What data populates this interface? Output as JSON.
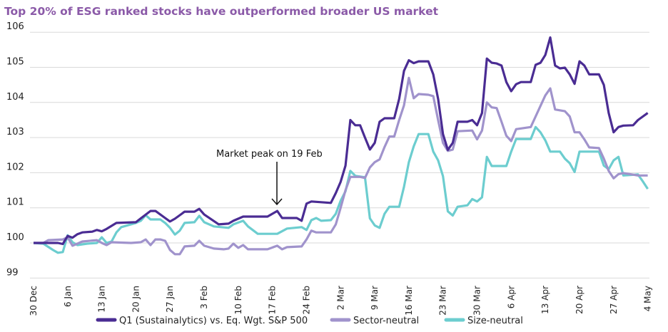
{
  "chart_data": {
    "type": "line",
    "title": "Top 20% of ESG ranked stocks have outperformed broader US market",
    "xlabel": "",
    "ylabel": "",
    "ylim": [
      99,
      106
    ],
    "yticks": [
      "99",
      "100",
      "101",
      "102",
      "103",
      "104",
      "105",
      "106"
    ],
    "xticks": [
      "30 Dec",
      "6 Jan",
      "13 Jan",
      "20 Jan",
      "27 Jan",
      "3 Feb",
      "10 Feb",
      "17 Feb",
      "24 Feb",
      "2 Mar",
      "9 Mar",
      "16 Mar",
      "23 Mar",
      "30 Mar",
      "6 Apr",
      "13 Apr",
      "20 Apr",
      "27 Apr",
      "4 May"
    ],
    "grid": "horizontal",
    "legend": "bottom",
    "annotation": {
      "text": "Market peak on 19 Feb",
      "date": "19 Feb"
    },
    "colors": {
      "title": "#8b5aa8",
      "grid": "#d9d9d9"
    },
    "series": [
      {
        "name": "Q1 (Sustainalytics) vs. Eq. Wgt. S&P 500",
        "color": "#4a2c93",
        "points": [
          [
            "30 Dec",
            100.0
          ],
          [
            "4 Jan",
            100.0
          ],
          [
            "5 Jan",
            99.97
          ],
          [
            "6 Jan",
            100.2
          ],
          [
            "7 Jan",
            100.15
          ],
          [
            "8 Jan",
            100.25
          ],
          [
            "9 Jan",
            100.3
          ],
          [
            "11 Jan",
            100.32
          ],
          [
            "12 Jan",
            100.37
          ],
          [
            "13 Jan",
            100.33
          ],
          [
            "14 Jan",
            100.4
          ],
          [
            "16 Jan",
            100.57
          ],
          [
            "20 Jan",
            100.59
          ],
          [
            "21 Jan",
            100.7
          ],
          [
            "23 Jan",
            100.91
          ],
          [
            "24 Jan",
            100.91
          ],
          [
            "26 Jan",
            100.71
          ],
          [
            "27 Jan",
            100.61
          ],
          [
            "28 Jan",
            100.69
          ],
          [
            "30 Jan",
            100.89
          ],
          [
            "1 Feb",
            100.89
          ],
          [
            "2 Feb",
            100.97
          ],
          [
            "3 Feb",
            100.81
          ],
          [
            "6 Feb",
            100.53
          ],
          [
            "8 Feb",
            100.55
          ],
          [
            "9 Feb",
            100.63
          ],
          [
            "11 Feb",
            100.75
          ],
          [
            "16 Feb",
            100.75
          ],
          [
            "18 Feb",
            100.91
          ],
          [
            "19 Feb",
            100.71
          ],
          [
            "22 Feb",
            100.71
          ],
          [
            "23 Feb",
            100.63
          ],
          [
            "24 Feb",
            101.12
          ],
          [
            "25 Feb",
            101.18
          ],
          [
            "29 Feb",
            101.14
          ],
          [
            "1 Mar",
            101.42
          ],
          [
            "2 Mar",
            101.74
          ],
          [
            "3 Mar",
            102.2
          ],
          [
            "4 Mar",
            103.5
          ],
          [
            "5 Mar",
            103.35
          ],
          [
            "6 Mar",
            103.35
          ],
          [
            "7 Mar",
            103.0
          ],
          [
            "8 Mar",
            102.66
          ],
          [
            "9 Mar",
            102.85
          ],
          [
            "10 Mar",
            103.45
          ],
          [
            "11 Mar",
            103.55
          ],
          [
            "13 Mar",
            103.55
          ],
          [
            "14 Mar",
            104.1
          ],
          [
            "15 Mar",
            104.9
          ],
          [
            "16 Mar",
            105.2
          ],
          [
            "17 Mar",
            105.12
          ],
          [
            "18 Mar",
            105.17
          ],
          [
            "20 Mar",
            105.17
          ],
          [
            "21 Mar",
            104.8
          ],
          [
            "22 Mar",
            104.1
          ],
          [
            "23 Mar",
            103.1
          ],
          [
            "24 Mar",
            102.65
          ],
          [
            "25 Mar",
            102.85
          ],
          [
            "26 Mar",
            103.45
          ],
          [
            "28 Mar",
            103.45
          ],
          [
            "29 Mar",
            103.5
          ],
          [
            "30 Mar",
            103.35
          ],
          [
            "31 Mar",
            103.7
          ],
          [
            "1 Apr",
            105.25
          ],
          [
            "2 Apr",
            105.13
          ],
          [
            "3 Apr",
            105.11
          ],
          [
            "4 Apr",
            105.05
          ],
          [
            "5 Apr",
            104.58
          ],
          [
            "6 Apr",
            104.32
          ],
          [
            "7 Apr",
            104.52
          ],
          [
            "8 Apr",
            104.58
          ],
          [
            "10 Apr",
            104.58
          ],
          [
            "11 Apr",
            105.07
          ],
          [
            "12 Apr",
            105.13
          ],
          [
            "13 Apr",
            105.35
          ],
          [
            "14 Apr",
            105.85
          ],
          [
            "15 Apr",
            105.05
          ],
          [
            "16 Apr",
            104.97
          ],
          [
            "17 Apr",
            104.99
          ],
          [
            "18 Apr",
            104.8
          ],
          [
            "19 Apr",
            104.53
          ],
          [
            "20 Apr",
            105.17
          ],
          [
            "21 Apr",
            105.05
          ],
          [
            "22 Apr",
            104.8
          ],
          [
            "24 Apr",
            104.8
          ],
          [
            "25 Apr",
            104.5
          ],
          [
            "26 Apr",
            103.7
          ],
          [
            "27 Apr",
            103.15
          ],
          [
            "28 Apr",
            103.3
          ],
          [
            "29 Apr",
            103.34
          ],
          [
            "1 May",
            103.35
          ],
          [
            "2 May",
            103.5
          ],
          [
            "4 May",
            103.7
          ]
        ]
      },
      {
        "name": "Sector-neutral",
        "color": "#a093cc",
        "points": [
          [
            "30 Dec",
            100.0
          ],
          [
            "1 Jan",
            100.0
          ],
          [
            "2 Jan",
            100.08
          ],
          [
            "5 Jan",
            100.1
          ],
          [
            "6 Jan",
            100.16
          ],
          [
            "7 Jan",
            99.92
          ],
          [
            "8 Jan",
            99.98
          ],
          [
            "9 Jan",
            100.04
          ],
          [
            "12 Jan",
            100.08
          ],
          [
            "13 Jan",
            100.0
          ],
          [
            "14 Jan",
            99.94
          ],
          [
            "15 Jan",
            100.02
          ],
          [
            "19 Jan",
            100.0
          ],
          [
            "21 Jan",
            100.02
          ],
          [
            "22 Jan",
            100.1
          ],
          [
            "23 Jan",
            99.94
          ],
          [
            "24 Jan",
            100.1
          ],
          [
            "25 Jan",
            100.1
          ],
          [
            "26 Jan",
            100.06
          ],
          [
            "27 Jan",
            99.8
          ],
          [
            "28 Jan",
            99.68
          ],
          [
            "29 Jan",
            99.68
          ],
          [
            "30 Jan",
            99.9
          ],
          [
            "1 Feb",
            99.92
          ],
          [
            "2 Feb",
            100.06
          ],
          [
            "3 Feb",
            99.92
          ],
          [
            "5 Feb",
            99.84
          ],
          [
            "7 Feb",
            99.82
          ],
          [
            "8 Feb",
            99.84
          ],
          [
            "9 Feb",
            99.98
          ],
          [
            "10 Feb",
            99.86
          ],
          [
            "11 Feb",
            99.94
          ],
          [
            "12 Feb",
            99.82
          ],
          [
            "16 Feb",
            99.82
          ],
          [
            "18 Feb",
            99.92
          ],
          [
            "19 Feb",
            99.82
          ],
          [
            "20 Feb",
            99.88
          ],
          [
            "23 Feb",
            99.9
          ],
          [
            "24 Feb",
            100.1
          ],
          [
            "25 Feb",
            100.35
          ],
          [
            "26 Feb",
            100.3
          ],
          [
            "29 Feb",
            100.3
          ],
          [
            "1 Mar",
            100.53
          ],
          [
            "2 Mar",
            101.0
          ],
          [
            "3 Mar",
            101.5
          ],
          [
            "4 Mar",
            101.88
          ],
          [
            "6 Mar",
            101.88
          ],
          [
            "7 Mar",
            101.85
          ],
          [
            "8 Mar",
            102.15
          ],
          [
            "9 Mar",
            102.3
          ],
          [
            "10 Mar",
            102.38
          ],
          [
            "11 Mar",
            102.73
          ],
          [
            "12 Mar",
            103.03
          ],
          [
            "13 Mar",
            103.03
          ],
          [
            "14 Mar",
            103.5
          ],
          [
            "15 Mar",
            103.92
          ],
          [
            "16 Mar",
            104.7
          ],
          [
            "17 Mar",
            104.12
          ],
          [
            "18 Mar",
            104.24
          ],
          [
            "20 Mar",
            104.22
          ],
          [
            "21 Mar",
            104.18
          ],
          [
            "22 Mar",
            103.5
          ],
          [
            "23 Mar",
            102.85
          ],
          [
            "24 Mar",
            102.62
          ],
          [
            "25 Mar",
            102.66
          ],
          [
            "26 Mar",
            103.18
          ],
          [
            "29 Mar",
            103.2
          ],
          [
            "30 Mar",
            102.95
          ],
          [
            "31 Mar",
            103.2
          ],
          [
            "1 Apr",
            104.0
          ],
          [
            "2 Apr",
            103.86
          ],
          [
            "3 Apr",
            103.84
          ],
          [
            "4 Apr",
            103.45
          ],
          [
            "5 Apr",
            103.05
          ],
          [
            "6 Apr",
            102.9
          ],
          [
            "7 Apr",
            103.24
          ],
          [
            "10 Apr",
            103.3
          ],
          [
            "11 Apr",
            103.6
          ],
          [
            "12 Apr",
            103.9
          ],
          [
            "13 Apr",
            104.2
          ],
          [
            "14 Apr",
            104.4
          ],
          [
            "15 Apr",
            103.8
          ],
          [
            "17 Apr",
            103.75
          ],
          [
            "18 Apr",
            103.6
          ],
          [
            "19 Apr",
            103.15
          ],
          [
            "20 Apr",
            103.15
          ],
          [
            "21 Apr",
            102.95
          ],
          [
            "22 Apr",
            102.72
          ],
          [
            "24 Apr",
            102.7
          ],
          [
            "25 Apr",
            102.4
          ],
          [
            "26 Apr",
            102.05
          ],
          [
            "27 Apr",
            101.84
          ],
          [
            "28 Apr",
            101.96
          ],
          [
            "29 Apr",
            101.99
          ],
          [
            "2 May",
            101.92
          ],
          [
            "4 May",
            101.92
          ]
        ]
      },
      {
        "name": "Size-neutral",
        "color": "#6ccdcf",
        "points": [
          [
            "30 Dec",
            100.0
          ],
          [
            "1 Jan",
            99.98
          ],
          [
            "3 Jan",
            99.8
          ],
          [
            "4 Jan",
            99.72
          ],
          [
            "5 Jan",
            99.74
          ],
          [
            "6 Jan",
            100.22
          ],
          [
            "7 Jan",
            100.02
          ],
          [
            "8 Jan",
            99.94
          ],
          [
            "10 Jan",
            99.98
          ],
          [
            "12 Jan",
            100.0
          ],
          [
            "13 Jan",
            100.16
          ],
          [
            "14 Jan",
            100.0
          ],
          [
            "15 Jan",
            100.04
          ],
          [
            "16 Jan",
            100.3
          ],
          [
            "17 Jan",
            100.45
          ],
          [
            "20 Jan",
            100.57
          ],
          [
            "21 Jan",
            100.63
          ],
          [
            "22 Jan",
            100.79
          ],
          [
            "23 Jan",
            100.67
          ],
          [
            "25 Jan",
            100.67
          ],
          [
            "26 Jan",
            100.57
          ],
          [
            "27 Jan",
            100.43
          ],
          [
            "28 Jan",
            100.24
          ],
          [
            "29 Jan",
            100.35
          ],
          [
            "30 Jan",
            100.57
          ],
          [
            "1 Feb",
            100.59
          ],
          [
            "2 Feb",
            100.77
          ],
          [
            "3 Feb",
            100.59
          ],
          [
            "5 Feb",
            100.47
          ],
          [
            "8 Feb",
            100.43
          ],
          [
            "9 Feb",
            100.53
          ],
          [
            "11 Feb",
            100.63
          ],
          [
            "12 Feb",
            100.47
          ],
          [
            "14 Feb",
            100.26
          ],
          [
            "18 Feb",
            100.26
          ],
          [
            "20 Feb",
            100.41
          ],
          [
            "23 Feb",
            100.45
          ],
          [
            "24 Feb",
            100.37
          ],
          [
            "25 Feb",
            100.65
          ],
          [
            "26 Feb",
            100.71
          ],
          [
            "27 Feb",
            100.63
          ],
          [
            "29 Feb",
            100.65
          ],
          [
            "1 Mar",
            100.83
          ],
          [
            "2 Mar",
            101.2
          ],
          [
            "3 Mar",
            101.47
          ],
          [
            "4 Mar",
            102.05
          ],
          [
            "5 Mar",
            101.91
          ],
          [
            "7 Mar",
            101.87
          ],
          [
            "8 Mar",
            100.7
          ],
          [
            "9 Mar",
            100.5
          ],
          [
            "10 Mar",
            100.43
          ],
          [
            "11 Mar",
            100.83
          ],
          [
            "12 Mar",
            101.03
          ],
          [
            "14 Mar",
            101.03
          ],
          [
            "15 Mar",
            101.6
          ],
          [
            "16 Mar",
            102.3
          ],
          [
            "17 Mar",
            102.75
          ],
          [
            "18 Mar",
            103.1
          ],
          [
            "20 Mar",
            103.1
          ],
          [
            "21 Mar",
            102.6
          ],
          [
            "22 Mar",
            102.35
          ],
          [
            "23 Mar",
            101.9
          ],
          [
            "24 Mar",
            100.9
          ],
          [
            "25 Mar",
            100.78
          ],
          [
            "26 Mar",
            101.03
          ],
          [
            "28 Mar",
            101.07
          ],
          [
            "29 Mar",
            101.25
          ],
          [
            "30 Mar",
            101.18
          ],
          [
            "31 Mar",
            101.3
          ],
          [
            "1 Apr",
            102.45
          ],
          [
            "2 Apr",
            102.19
          ],
          [
            "5 Apr",
            102.19
          ],
          [
            "6 Apr",
            102.6
          ],
          [
            "7 Apr",
            102.96
          ],
          [
            "10 Apr",
            102.96
          ],
          [
            "11 Apr",
            103.3
          ],
          [
            "12 Apr",
            103.15
          ],
          [
            "13 Apr",
            102.92
          ],
          [
            "14 Apr",
            102.6
          ],
          [
            "16 Apr",
            102.6
          ],
          [
            "17 Apr",
            102.4
          ],
          [
            "18 Apr",
            102.27
          ],
          [
            "19 Apr",
            102.02
          ],
          [
            "20 Apr",
            102.6
          ],
          [
            "24 Apr",
            102.6
          ],
          [
            "25 Apr",
            102.2
          ],
          [
            "26 Apr",
            102.1
          ],
          [
            "27 Apr",
            102.35
          ],
          [
            "28 Apr",
            102.45
          ],
          [
            "29 Apr",
            101.92
          ],
          [
            "2 May",
            101.95
          ],
          [
            "3 May",
            101.75
          ],
          [
            "4 May",
            101.54
          ]
        ]
      }
    ]
  }
}
